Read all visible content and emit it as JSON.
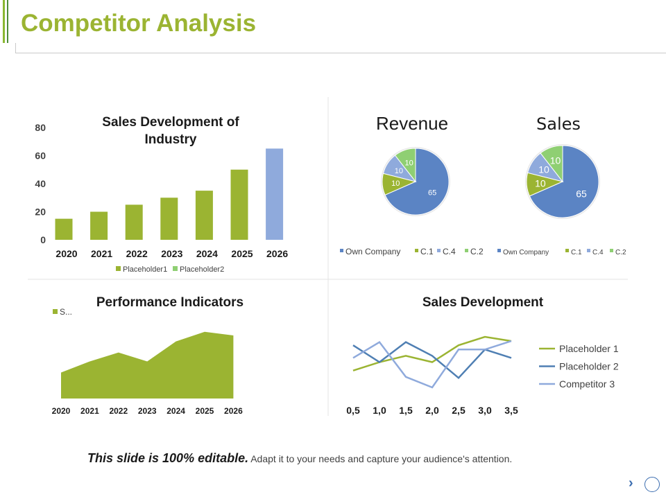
{
  "page": {
    "title": "Competitor Analysis",
    "footer_bold": "This slide is 100% editable.",
    "footer_text": "Adapt it to your needs and capture your audience's attention."
  },
  "colors": {
    "title": "#9bb432",
    "green": "#9bb432",
    "blue": "#5b84c4",
    "lightblue": "#8faadc",
    "lightgreen": "#8fcf73",
    "steel": "#4f7fb3",
    "grid": "#d9d9d9"
  },
  "chart_data": [
    {
      "type": "bar",
      "title": "Sales Development of Industry",
      "title_lines": [
        "Sales Development of",
        "Industry"
      ],
      "categories": [
        "2020",
        "2021",
        "2022",
        "2023",
        "2024",
        "2025",
        "2026"
      ],
      "values": [
        15,
        20,
        25,
        30,
        35,
        50,
        65
      ],
      "highlight_index": 6,
      "yticks": [
        "0",
        "20",
        "40",
        "60",
        "80"
      ],
      "ylim": [
        0,
        80
      ],
      "legend": [
        "Placeholder1",
        "Placeholder2"
      ]
    },
    {
      "type": "pie",
      "title": "Revenue",
      "labels": [
        "Own Company",
        "C.1",
        "C.4",
        "C.2"
      ],
      "values": [
        65,
        10,
        10,
        10
      ],
      "value_labels": [
        "65",
        "10",
        "10",
        "10"
      ],
      "legend": [
        "Own Company",
        "C.1",
        "C.4",
        "C.2"
      ]
    },
    {
      "type": "pie",
      "title": "Sales",
      "labels": [
        "Own Company",
        "C.1",
        "C.4",
        "C.2"
      ],
      "values": [
        65,
        10,
        10,
        10
      ],
      "value_labels": [
        "65",
        "10",
        "10",
        "10"
      ],
      "legend": [
        "Own Company",
        "C.1",
        "C.4",
        "C.2"
      ]
    },
    {
      "type": "area",
      "title": "Performance Indicators",
      "categories": [
        "2020",
        "2021",
        "2022",
        "2023",
        "2024",
        "2025",
        "2026"
      ],
      "values": [
        35,
        50,
        62,
        50,
        77,
        90,
        85
      ],
      "ylim": [
        0,
        100
      ],
      "legend": [
        "S..."
      ]
    },
    {
      "type": "line",
      "title": "Sales Development",
      "x": [
        "0,5",
        "1,0",
        "1,5",
        "2,0",
        "2,5",
        "3,0",
        "3,5"
      ],
      "ylim": [
        0,
        5
      ],
      "series": [
        {
          "name": "Placeholder 1",
          "values": [
            1.6,
            2.4,
            3.0,
            2.4,
            4.0,
            4.8,
            4.4
          ]
        },
        {
          "name": "Placeholder 2",
          "values": [
            4.0,
            2.4,
            4.3,
            3.0,
            0.9,
            3.6,
            2.8
          ]
        },
        {
          "name": "Competitor 3",
          "values": [
            2.8,
            4.3,
            1.0,
            0.0,
            3.6,
            3.6,
            4.4
          ]
        }
      ]
    }
  ]
}
